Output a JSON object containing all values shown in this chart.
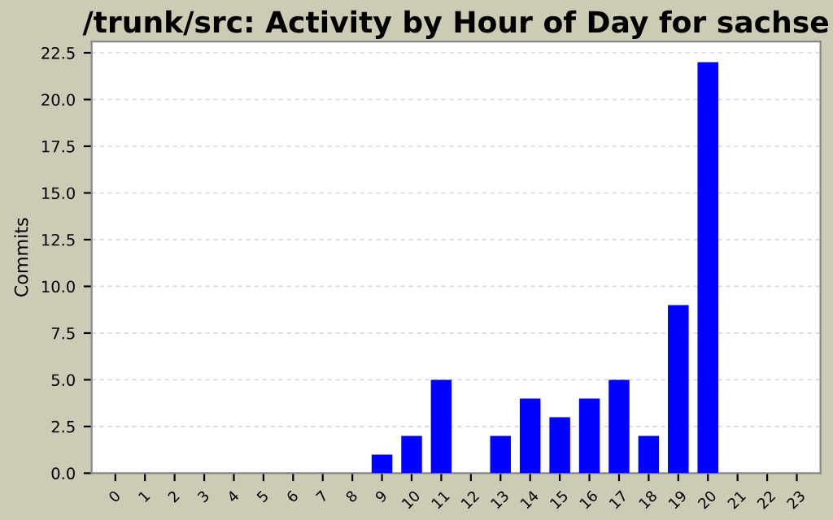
{
  "chart_data": {
    "type": "bar",
    "title": "/trunk/src: Activity by Hour of Day for sachse",
    "ylabel": "Commits",
    "categories": [
      "0",
      "1",
      "2",
      "3",
      "4",
      "5",
      "6",
      "7",
      "8",
      "9",
      "10",
      "11",
      "12",
      "13",
      "14",
      "15",
      "16",
      "17",
      "18",
      "19",
      "20",
      "21",
      "22",
      "23"
    ],
    "values": [
      0,
      0,
      0,
      0,
      0,
      0,
      0,
      0,
      0,
      1,
      2,
      5,
      0,
      2,
      4,
      3,
      4,
      5,
      2,
      9,
      22,
      0,
      0,
      0
    ],
    "color": "#0000ff",
    "ylim": [
      0,
      23.1
    ],
    "yticks": [
      {
        "value": 0,
        "label": "0.0"
      },
      {
        "value": 2.5,
        "label": "2.5"
      },
      {
        "value": 5,
        "label": "5.0"
      },
      {
        "value": 7.5,
        "label": "7.5"
      },
      {
        "value": 10,
        "label": "10.0"
      },
      {
        "value": 12.5,
        "label": "12.5"
      },
      {
        "value": 15,
        "label": "15.0"
      },
      {
        "value": 17.5,
        "label": "17.5"
      },
      {
        "value": 20,
        "label": "20.0"
      },
      {
        "value": 22.5,
        "label": "22.5"
      }
    ],
    "grid": "y",
    "legend": false
  }
}
